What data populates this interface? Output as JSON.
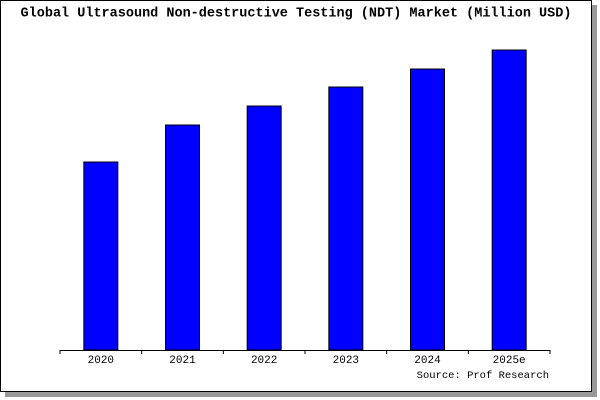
{
  "chart_data": {
    "type": "bar",
    "title": "Global Ultrasound Non-destructive Testing (NDT) Market (Million USD)",
    "source": "Source: Prof Research",
    "categories": [
      "2020",
      "2021",
      "2022",
      "2023",
      "2024",
      "2025e"
    ],
    "values": [
      188,
      225,
      244,
      263,
      281,
      300
    ],
    "color": "#0000ff"
  }
}
